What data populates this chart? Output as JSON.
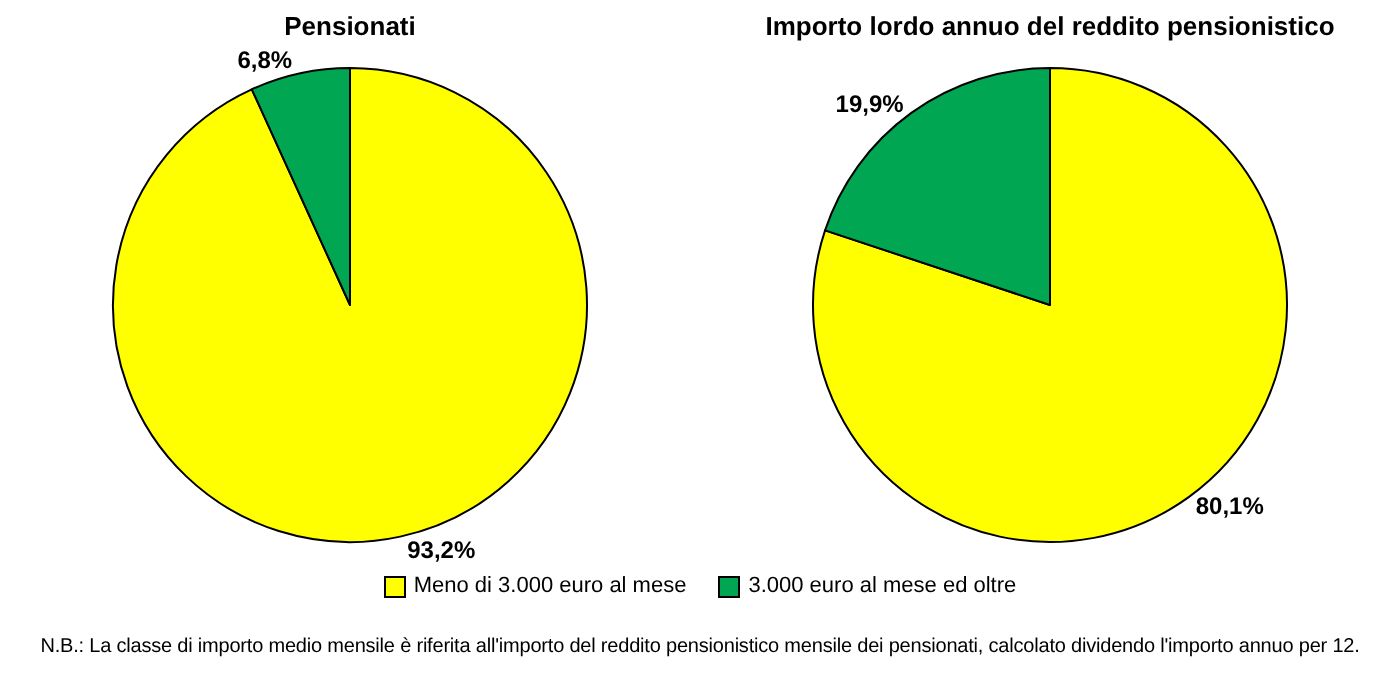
{
  "chart_data": [
    {
      "type": "pie",
      "title": "Pensionati",
      "categories": [
        "Meno di 3.000 euro al mese",
        "3.000 euro al mese ed oltre"
      ],
      "values": [
        93.2,
        6.8
      ],
      "value_labels": [
        "93,2%",
        "6,8%"
      ],
      "colors": [
        "#ffff00",
        "#00a651"
      ],
      "legend": "bottom",
      "annotations": [
        "N.B.: La classe di importo medio mensile è riferita all'importo del reddito pensionistico mensile dei pensionati, calcolato dividendo l'importo annuo per 12."
      ]
    },
    {
      "type": "pie",
      "title": "Importo lordo annuo del reddito pensionistico",
      "values": [
        80.1,
        19.9
      ],
      "value_labels": [
        "80,1%",
        "19,9%"
      ],
      "colors": [
        "#ffff00",
        "#00a651"
      ]
    }
  ]
}
